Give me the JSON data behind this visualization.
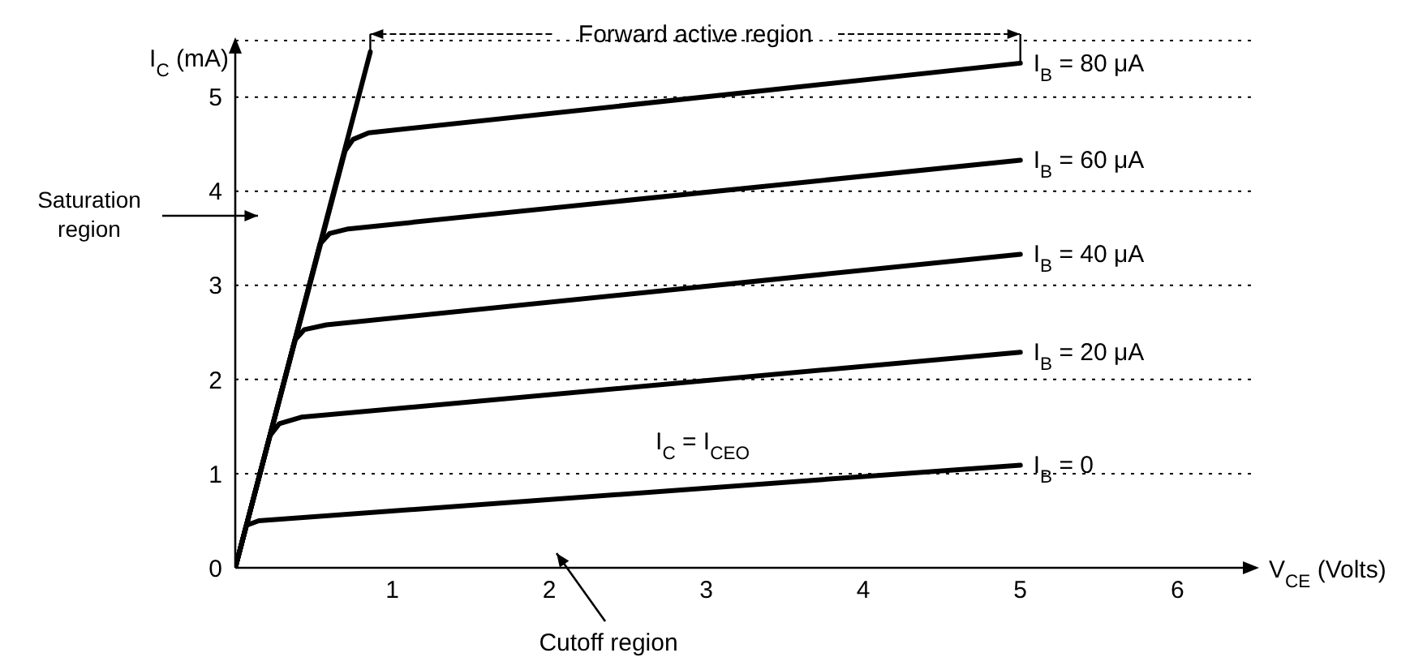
{
  "chart_data": {
    "type": "line",
    "xlabel": "V$_{CE}$ (Volts)",
    "ylabel": "I$_{C}$ (mA)",
    "xlim": [
      0,
      6.5
    ],
    "ylim": [
      0,
      5.6
    ],
    "xticks": [
      1,
      2,
      3,
      4,
      5,
      6
    ],
    "yticks": [
      0,
      1,
      2,
      3,
      4,
      5
    ],
    "grid": "y",
    "marker": "none",
    "line_style": "solid",
    "series": [
      {
        "name": "I$_{B}$ = 80 μA",
        "color": "#000000",
        "x": [
          0,
          0.7,
          0.75,
          0.85,
          5
        ],
        "values": [
          0,
          4.43,
          4.55,
          4.62,
          5.36
        ]
      },
      {
        "name": "I$_{B}$ = 60 μA",
        "color": "#000000",
        "x": [
          0,
          0.54,
          0.6,
          0.72,
          5
        ],
        "values": [
          0,
          3.44,
          3.55,
          3.6,
          4.33
        ]
      },
      {
        "name": "I$_{B}$ = 40 μA",
        "color": "#000000",
        "x": [
          0,
          0.38,
          0.44,
          0.58,
          5
        ],
        "values": [
          0,
          2.42,
          2.53,
          2.58,
          3.33
        ]
      },
      {
        "name": "I$_{B}$ = 20 μA",
        "color": "#000000",
        "x": [
          0,
          0.22,
          0.28,
          0.42,
          5
        ],
        "values": [
          0,
          1.4,
          1.53,
          1.6,
          2.29
        ]
      },
      {
        "name": "I$_{B}$ = 0",
        "color": "#000000",
        "x": [
          0,
          0.07,
          0.15,
          5
        ],
        "values": [
          0,
          0.45,
          0.5,
          1.09
        ]
      },
      {
        "color": "#000000",
        "x": [
          0,
          0.86
        ],
        "values": [
          0,
          5.48
        ]
      }
    ],
    "annotations": [
      "Forward active region",
      "Saturation region",
      "I$_{C}$ = I$_{CEO}$",
      "Cutoff region"
    ]
  }
}
